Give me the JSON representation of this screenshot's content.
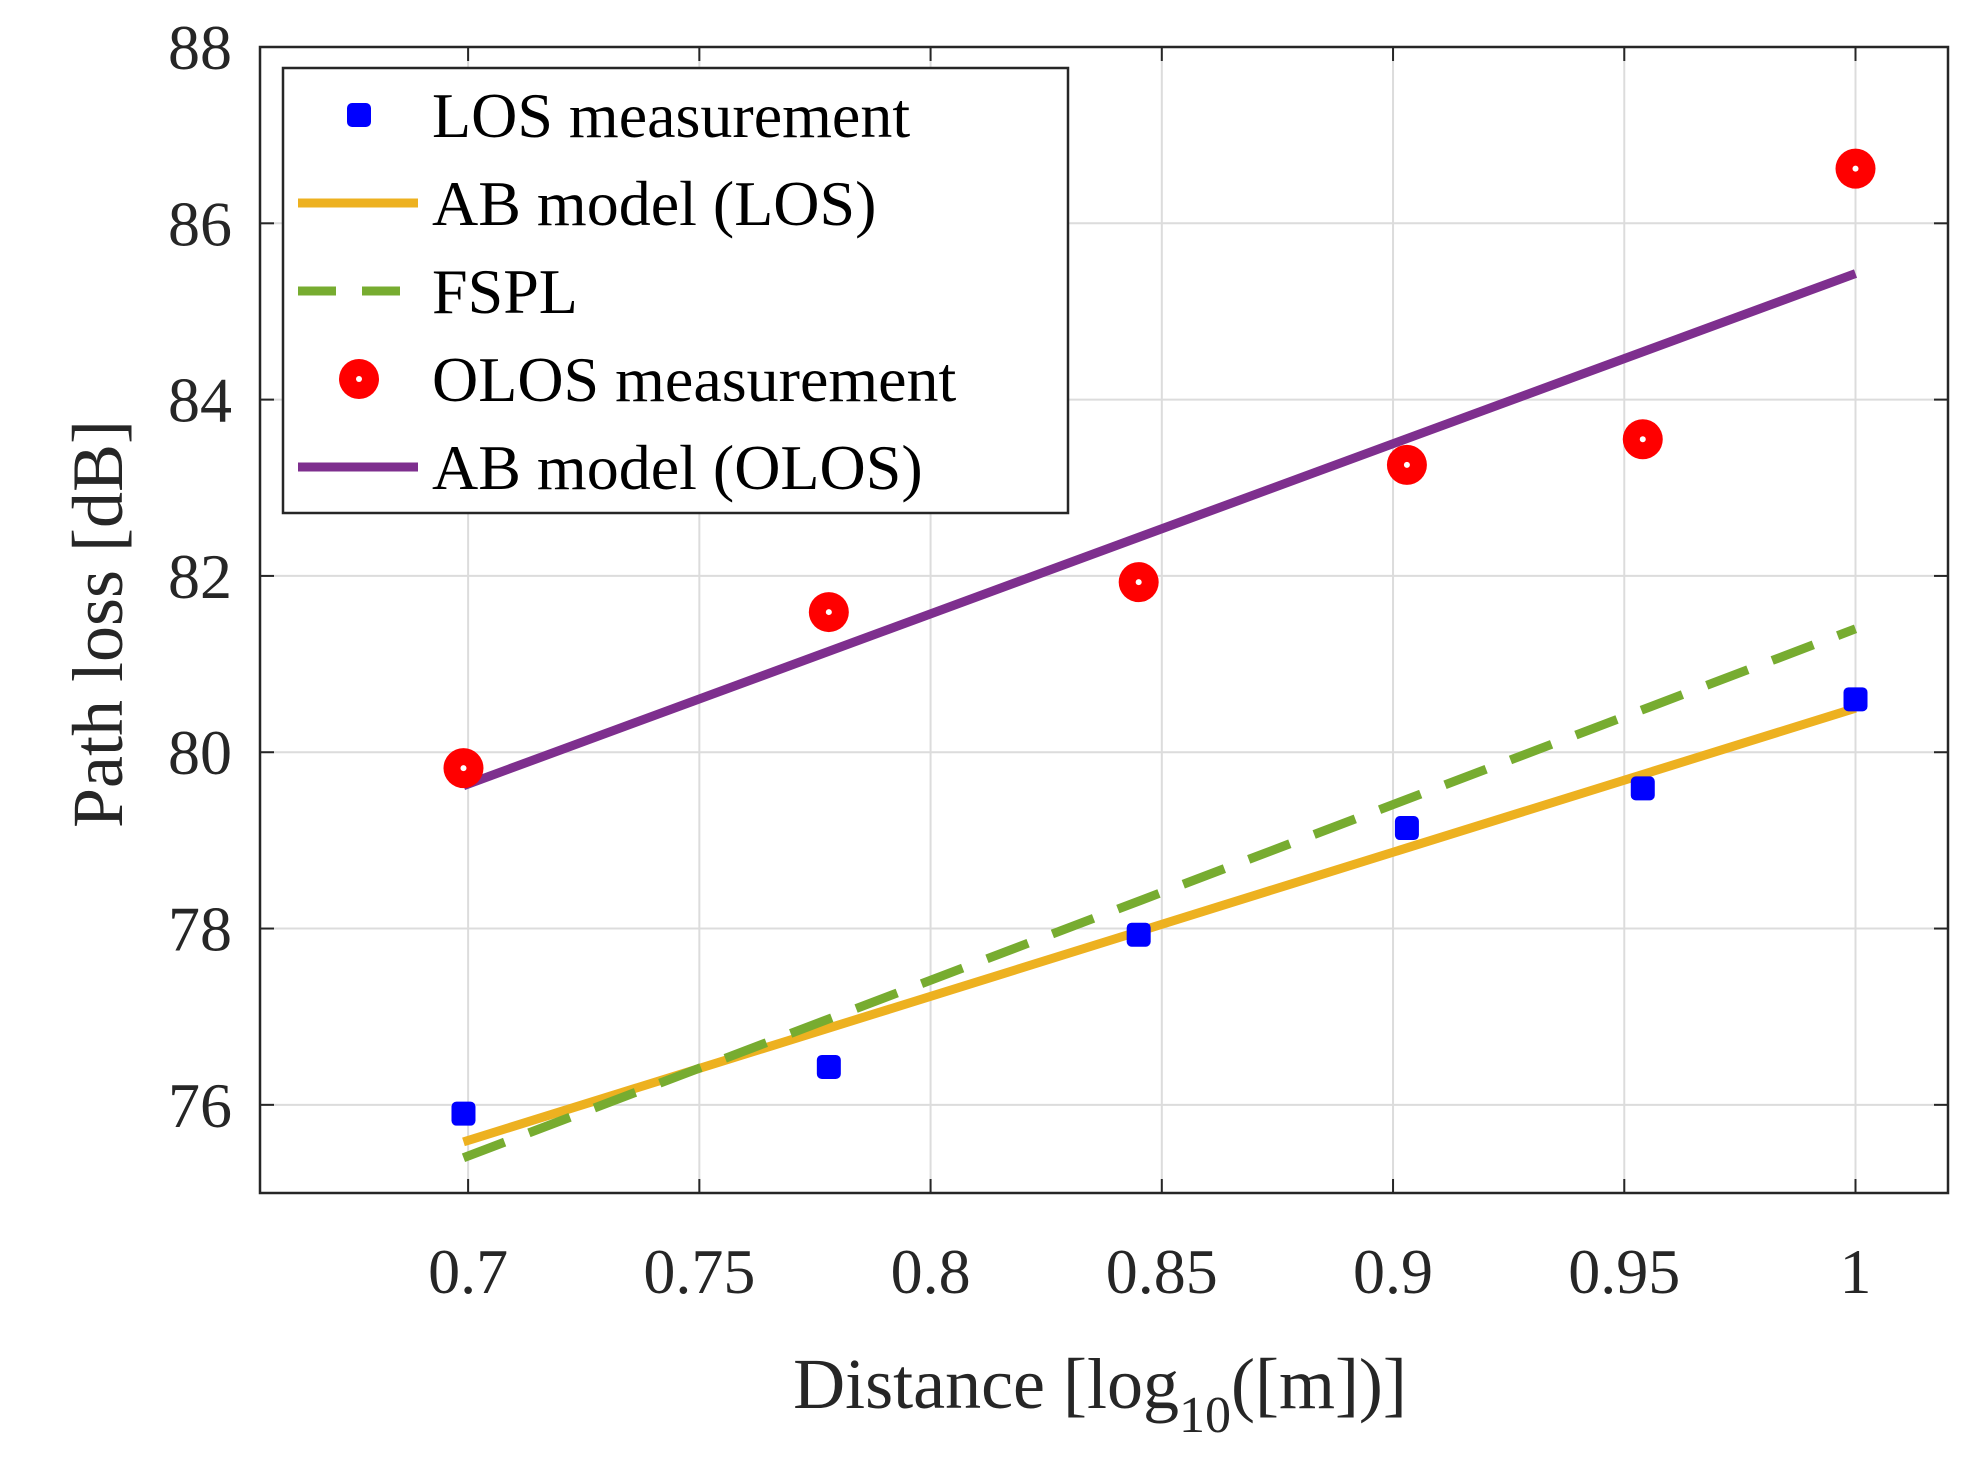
{
  "chart_data": {
    "type": "line",
    "xlabel": "Distance [log10([m])]",
    "xlabel_parts": {
      "main": "Distance [log",
      "sub": "10",
      "tail": "([m])]"
    },
    "ylabel": "Path loss [dB]",
    "xlim": [
      0.655,
      1.02
    ],
    "ylim": [
      75,
      88
    ],
    "xticks": [
      0.7,
      0.75,
      0.8,
      0.85,
      0.9,
      0.95,
      1
    ],
    "xtick_labels": [
      "0.7",
      "0.75",
      "0.8",
      "0.85",
      "0.9",
      "0.95",
      "1"
    ],
    "yticks": [
      76,
      78,
      80,
      82,
      84,
      86,
      88
    ],
    "ytick_labels": [
      "76",
      "78",
      "80",
      "82",
      "84",
      "86",
      "88"
    ],
    "grid": true,
    "legend_position": "top-left",
    "series": [
      {
        "name": "LOS measurement",
        "style": "markers",
        "marker": "square",
        "color": "#0000FF",
        "x": [
          0.699,
          0.778,
          0.845,
          0.903,
          0.954,
          1.0
        ],
        "y": [
          75.9,
          76.43,
          77.93,
          79.14,
          79.59,
          80.6
        ]
      },
      {
        "name": "AB model (LOS)",
        "style": "solid",
        "color": "#EDB120",
        "x": [
          0.699,
          1.0
        ],
        "y": [
          75.58,
          80.5
        ]
      },
      {
        "name": "FSPL",
        "style": "dashed",
        "color": "#77AC30",
        "x": [
          0.699,
          1.0
        ],
        "y": [
          75.4,
          81.4
        ]
      },
      {
        "name": "OLOS measurement",
        "style": "markers",
        "marker": "circle",
        "color": "#FF0000",
        "x": [
          0.699,
          0.778,
          0.845,
          0.903,
          0.954,
          1.0
        ],
        "y": [
          79.82,
          81.59,
          81.93,
          83.26,
          83.55,
          86.62
        ]
      },
      {
        "name": "AB model (OLOS)",
        "style": "solid",
        "color": "#7E2F8E",
        "x": [
          0.699,
          1.0
        ],
        "y": [
          79.62,
          85.43
        ]
      }
    ]
  }
}
